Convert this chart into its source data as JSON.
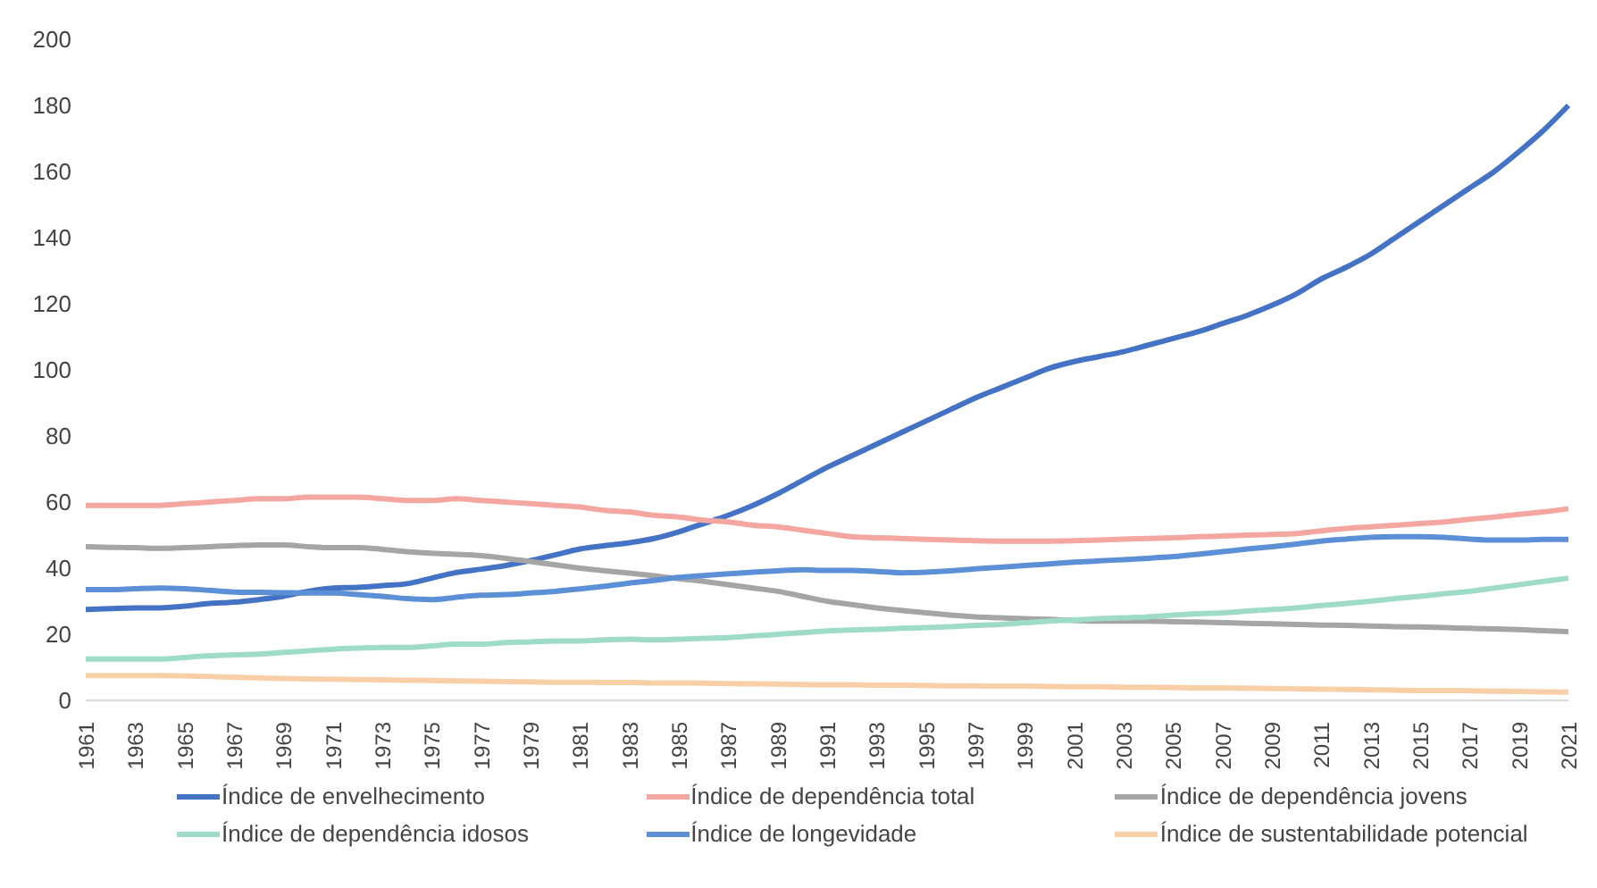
{
  "chart_data": {
    "type": "line",
    "categories": [
      "1961",
      null,
      "1963",
      null,
      "1965",
      null,
      "1967",
      null,
      "1969",
      null,
      "1971",
      null,
      "1973",
      null,
      "1975",
      null,
      "1977",
      null,
      "1979",
      null,
      "1981",
      null,
      "1983",
      null,
      "1985",
      null,
      "1987",
      null,
      "1989",
      null,
      "1991",
      null,
      "1993",
      null,
      "1995",
      null,
      "1997",
      null,
      "1999",
      null,
      "2001",
      null,
      "2003",
      null,
      "2005",
      null,
      "2007",
      null,
      "2009",
      null,
      "2011",
      null,
      "2013",
      null,
      "2015",
      null,
      "2017",
      null,
      "2019",
      null,
      "2021"
    ],
    "series": [
      {
        "name": "Índice de envelhecimento",
        "color": "#4472c4",
        "values": [
          27.5,
          27.8,
          28,
          28,
          28.5,
          29.3,
          29.7,
          30.5,
          31.5,
          33,
          34,
          34.2,
          34.7,
          35.3,
          37,
          38.7,
          39.7,
          40.8,
          42.3,
          44,
          45.8,
          46.8,
          47.7,
          49,
          51,
          53.5,
          56,
          59,
          62.5,
          66.5,
          70.5,
          74,
          77.5,
          81,
          84.5,
          88,
          91.5,
          94.5,
          97.5,
          100.5,
          102.5,
          104,
          105.5,
          107.5,
          109.5,
          111.5,
          114,
          116.5,
          119.5,
          123,
          127.5,
          131,
          135,
          140,
          145,
          150,
          155,
          160,
          166,
          172.5,
          180
        ]
      },
      {
        "name": "Índice de dependência total",
        "color": "#f4a6a0",
        "values": [
          59,
          59,
          59,
          59,
          59.5,
          60,
          60.5,
          61,
          61,
          61.5,
          61.5,
          61.5,
          61,
          60.5,
          60.5,
          61,
          60.5,
          60,
          59.5,
          59,
          58.5,
          57.5,
          57,
          56,
          55.5,
          54.5,
          54,
          53,
          52.5,
          51.5,
          50.5,
          49.5,
          49.2,
          49,
          48.7,
          48.5,
          48.3,
          48.2,
          48.2,
          48.2,
          48.3,
          48.5,
          48.8,
          49,
          49.2,
          49.5,
          49.7,
          50,
          50.2,
          50.5,
          51.3,
          52,
          52.5,
          53,
          53.5,
          54,
          54.8,
          55.5,
          56.3,
          57,
          58
        ]
      },
      {
        "name": "Índice de dependência jovens",
        "color": "#a5a5a5",
        "values": [
          46.5,
          46.3,
          46.2,
          46,
          46.2,
          46.5,
          46.8,
          47,
          47,
          46.5,
          46.2,
          46.2,
          45.7,
          45,
          44.5,
          44.2,
          43.8,
          43,
          42,
          41,
          40,
          39.2,
          38.5,
          37.7,
          36.8,
          36,
          35,
          34,
          33,
          31.5,
          30,
          29,
          28,
          27.2,
          26.5,
          25.8,
          25.3,
          25,
          24.7,
          24.5,
          24.2,
          24,
          24,
          24,
          23.8,
          23.7,
          23.5,
          23.3,
          23.2,
          23,
          22.8,
          22.7,
          22.5,
          22.3,
          22.2,
          22,
          21.8,
          21.6,
          21.4,
          21.1,
          20.8
        ]
      },
      {
        "name": "Índice de dependência idosos",
        "color": "#9fdcc5",
        "values": [
          12.5,
          12.5,
          12.5,
          12.5,
          13,
          13.5,
          13.8,
          14,
          14.5,
          15,
          15.5,
          15.8,
          16,
          16,
          16.5,
          17,
          17,
          17.5,
          17.7,
          18,
          18,
          18.3,
          18.5,
          18.3,
          18.5,
          18.8,
          19,
          19.5,
          20,
          20.5,
          21,
          21.3,
          21.5,
          21.8,
          22,
          22.3,
          22.7,
          23,
          23.5,
          24,
          24.3,
          24.7,
          25,
          25.3,
          25.8,
          26.2,
          26.5,
          27,
          27.5,
          28,
          28.7,
          29.3,
          30,
          30.8,
          31.5,
          32.3,
          33,
          34,
          35,
          36,
          37
        ]
      },
      {
        "name": "Índice de longevidade",
        "color": "#5b8fd6",
        "values": [
          33.5,
          33.5,
          33.8,
          34,
          33.8,
          33.3,
          32.8,
          32.7,
          32.6,
          32.5,
          32.5,
          32,
          31.5,
          30.8,
          30.5,
          31.2,
          31.8,
          32,
          32.5,
          33,
          33.7,
          34.5,
          35.5,
          36.3,
          37.2,
          37.8,
          38.3,
          38.8,
          39.2,
          39.5,
          39.3,
          39.3,
          39,
          38.6,
          38.8,
          39.2,
          39.8,
          40.3,
          40.8,
          41.3,
          41.8,
          42.2,
          42.6,
          43,
          43.5,
          44.2,
          45,
          45.8,
          46.5,
          47.3,
          48.2,
          48.8,
          49.3,
          49.5,
          49.5,
          49.3,
          48.8,
          48.5,
          48.5,
          48.7,
          48.7
        ]
      },
      {
        "name": "Índice de sustentabilidade potencial",
        "color": "#f9cfa8",
        "values": [
          7.5,
          7.5,
          7.5,
          7.5,
          7.4,
          7.2,
          7,
          6.8,
          6.6,
          6.5,
          6.4,
          6.3,
          6.2,
          6.1,
          6,
          5.9,
          5.8,
          5.7,
          5.6,
          5.5,
          5.5,
          5.4,
          5.4,
          5.3,
          5.3,
          5.2,
          5.1,
          5,
          4.9,
          4.8,
          4.7,
          4.7,
          4.6,
          4.6,
          4.5,
          4.4,
          4.4,
          4.3,
          4.3,
          4.2,
          4.1,
          4.1,
          4,
          4,
          3.9,
          3.8,
          3.8,
          3.7,
          3.6,
          3.5,
          3.4,
          3.3,
          3.2,
          3.1,
          3,
          3,
          2.9,
          2.8,
          2.7,
          2.6,
          2.5
        ]
      }
    ],
    "ylim": [
      0,
      200
    ],
    "yticks": [
      0,
      20,
      40,
      60,
      80,
      100,
      120,
      140,
      160,
      180,
      200
    ],
    "grid": false,
    "legend": "bottom",
    "marker": "none",
    "line_style": "solid"
  }
}
